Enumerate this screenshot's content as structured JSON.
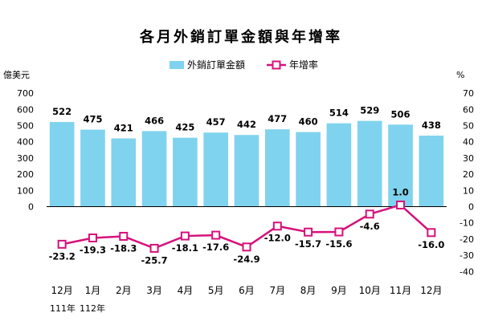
{
  "chart_data": {
    "type": "bar",
    "title": "各月外銷訂單金額與年增率",
    "left_unit": "億美元",
    "right_unit": "%",
    "categories": [
      "12月",
      "1月",
      "2月",
      "3月",
      "4月",
      "5月",
      "6月",
      "7月",
      "8月",
      "9月",
      "10月",
      "11月",
      "12月"
    ],
    "year_labels": [
      "111年",
      "112年"
    ],
    "series": [
      {
        "name": "外銷訂單金額",
        "type": "bar",
        "axis": "left",
        "color": "#7fd3ee",
        "values": [
          522,
          475,
          421,
          466,
          425,
          457,
          442,
          477,
          460,
          514,
          529,
          506,
          438
        ],
        "labels": [
          "522",
          "475",
          "421",
          "466",
          "425",
          "457",
          "442",
          "477",
          "460",
          "514",
          "529",
          "506",
          "438"
        ]
      },
      {
        "name": "年增率",
        "type": "line",
        "axis": "right",
        "color": "#d6117a",
        "values": [
          -23.2,
          -19.3,
          -18.3,
          -25.7,
          -18.1,
          -17.6,
          -24.9,
          -12.0,
          -15.7,
          -15.6,
          -4.6,
          1.0,
          -16.0
        ],
        "labels": [
          "-23.2",
          "-19.3",
          "-18.3",
          "-25.7",
          "-18.1",
          "-17.6",
          "-24.9",
          "-12.0",
          "-15.7",
          "-15.6",
          "-4.6",
          "1.0",
          "-16.0"
        ]
      }
    ],
    "left_axis": {
      "ylim": [
        0,
        700
      ],
      "ticks": [
        "700",
        "600",
        "500",
        "400",
        "300",
        "200",
        "100",
        "0"
      ]
    },
    "right_axis": {
      "ylim": [
        -40,
        70
      ],
      "ticks": [
        "70",
        "60",
        "50",
        "40",
        "30",
        "20",
        "10",
        "0",
        "-10",
        "-20",
        "-30",
        "-40"
      ]
    },
    "legend_position": "top-center",
    "grid": false
  }
}
